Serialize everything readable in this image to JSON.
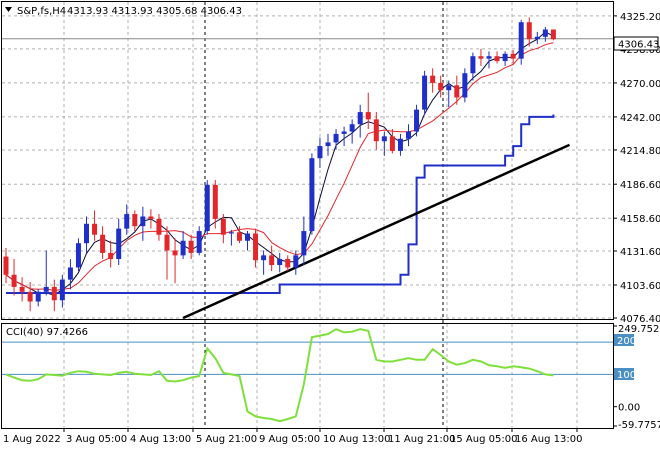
{
  "chart_window": {
    "symbol_title": "S&P,fs,H4",
    "ohlc_header": "4313.93 4313.93 4305.68 4306.43",
    "current_price_label": "4306.43"
  },
  "indicator": {
    "name_label": "CCI(40) 97.4266",
    "level_200_label": "200",
    "level_100_label": "100"
  },
  "colors": {
    "bull_candle": "#1f2fc8",
    "bear_candle": "#e3262b",
    "doji_candle": "#3cb371",
    "ma_fast": "#0a0a3a",
    "ma_slow": "#e3262b",
    "stop_line": "#1f2fc8",
    "trendline": "#000000",
    "cci_line": "#7fe03c",
    "level_line": "#4a8fc4",
    "grid": "#b0b0b0"
  },
  "chart_data": {
    "type": "candlestick",
    "title": "S&P,fs,H4",
    "price_ylim": [
      4076.4,
      4335.0
    ],
    "price_ticks": [
      "4325.20",
      "4298.00",
      "4270.00",
      "4242.00",
      "4214.80",
      "4186.60",
      "4158.60",
      "4131.60",
      "4103.60",
      "4076.40"
    ],
    "cci_ylim": [
      -59.7757,
      249.7527
    ],
    "cci_ticks": [
      "249.7527",
      "200",
      "100",
      "0.00",
      "-59.7757"
    ],
    "x_tick_labels": [
      "1 Aug 2022",
      "3 Aug 05:00",
      "4 Aug 13:00",
      "5 Aug 21:00",
      "9 Aug 05:00",
      "10 Aug 13:00",
      "11 Aug 21:00",
      "15 Aug 05:00",
      "16 Aug 13:00"
    ],
    "candles": [
      [
        4127,
        4134,
        4105,
        4112
      ],
      [
        4112,
        4125,
        4095,
        4102
      ],
      [
        4102,
        4110,
        4090,
        4098
      ],
      [
        4098,
        4106,
        4082,
        4090
      ],
      [
        4090,
        4100,
        4086,
        4098
      ],
      [
        4098,
        4132,
        4095,
        4102
      ],
      [
        4102,
        4108,
        4082,
        4091
      ],
      [
        4091,
        4112,
        4085,
        4108
      ],
      [
        4108,
        4125,
        4100,
        4118
      ],
      [
        4118,
        4142,
        4115,
        4138
      ],
      [
        4138,
        4160,
        4130,
        4154
      ],
      [
        4154,
        4165,
        4140,
        4145
      ],
      [
        4145,
        4152,
        4125,
        4130
      ],
      [
        4130,
        4140,
        4118,
        4125
      ],
      [
        4125,
        4158,
        4120,
        4150
      ],
      [
        4150,
        4170,
        4145,
        4162
      ],
      [
        4162,
        4165,
        4148,
        4152
      ],
      [
        4152,
        4168,
        4140,
        4160
      ],
      [
        4160,
        4166,
        4150,
        4158
      ],
      [
        4158,
        4162,
        4140,
        4145
      ],
      [
        4145,
        4152,
        4108,
        4132
      ],
      [
        4132,
        4142,
        4105,
        4128
      ],
      [
        4128,
        4148,
        4125,
        4140
      ],
      [
        4140,
        4145,
        4125,
        4130
      ],
      [
        4130,
        4152,
        4128,
        4148
      ],
      [
        4148,
        4190,
        4145,
        4186
      ],
      [
        4186,
        4190,
        4150,
        4158
      ],
      [
        4158,
        4162,
        4138,
        4145
      ],
      [
        4146,
        4149,
        4136,
        4147
      ],
      [
        4147,
        4152,
        4138,
        4140
      ],
      [
        4140,
        4148,
        4132,
        4146
      ],
      [
        4146,
        4150,
        4118,
        4124
      ],
      [
        4124,
        4132,
        4112,
        4128
      ],
      [
        4128,
        4136,
        4115,
        4120
      ],
      [
        4120,
        4130,
        4114,
        4125
      ],
      [
        4125,
        4128,
        4115,
        4118
      ],
      [
        4118,
        4132,
        4112,
        4128
      ],
      [
        4128,
        4160,
        4120,
        4148
      ],
      [
        4148,
        4212,
        4145,
        4208
      ],
      [
        4208,
        4225,
        4200,
        4218
      ],
      [
        4218,
        4228,
        4210,
        4221
      ],
      [
        4221,
        4232,
        4215,
        4228
      ],
      [
        4228,
        4234,
        4218,
        4230
      ],
      [
        4230,
        4240,
        4220,
        4236
      ],
      [
        4236,
        4252,
        4225,
        4246
      ],
      [
        4246,
        4262,
        4232,
        4240
      ],
      [
        4240,
        4246,
        4215,
        4222
      ],
      [
        4222,
        4230,
        4210,
        4226
      ],
      [
        4226,
        4232,
        4212,
        4214
      ],
      [
        4214,
        4228,
        4210,
        4224
      ],
      [
        4224,
        4236,
        4218,
        4230
      ],
      [
        4230,
        4252,
        4226,
        4248
      ],
      [
        4248,
        4280,
        4244,
        4276
      ],
      [
        4276,
        4282,
        4262,
        4270
      ],
      [
        4270,
        4276,
        4258,
        4264
      ],
      [
        4264,
        4272,
        4250,
        4268
      ],
      [
        4268,
        4276,
        4252,
        4258
      ],
      [
        4258,
        4282,
        4254,
        4278
      ],
      [
        4278,
        4295,
        4272,
        4292
      ],
      [
        4292,
        4298,
        4284,
        4290
      ],
      [
        4290,
        4296,
        4282,
        4292
      ],
      [
        4292,
        4296,
        4286,
        4288
      ],
      [
        4288,
        4296,
        4284,
        4294
      ],
      [
        4294,
        4297,
        4286,
        4290
      ],
      [
        4290,
        4322,
        4285,
        4320
      ],
      [
        4320,
        4324,
        4300,
        4306
      ],
      [
        4306,
        4312,
        4302,
        4308
      ],
      [
        4308,
        4316,
        4304,
        4314
      ],
      [
        4314,
        4314,
        4305,
        4306
      ]
    ],
    "cci_values": [
      100,
      90,
      82,
      80,
      85,
      100,
      98,
      96,
      105,
      110,
      108,
      102,
      100,
      98,
      105,
      108,
      102,
      100,
      98,
      110,
      80,
      78,
      82,
      90,
      95,
      180,
      150,
      105,
      100,
      95,
      -15,
      -30,
      -35,
      -38,
      -45,
      -38,
      -30,
      70,
      215,
      220,
      225,
      240,
      230,
      232,
      240,
      235,
      145,
      140,
      140,
      145,
      150,
      145,
      145,
      178,
      160,
      140,
      130,
      135,
      145,
      140,
      128,
      125,
      120,
      125,
      122,
      118,
      110,
      100,
      97
    ]
  }
}
